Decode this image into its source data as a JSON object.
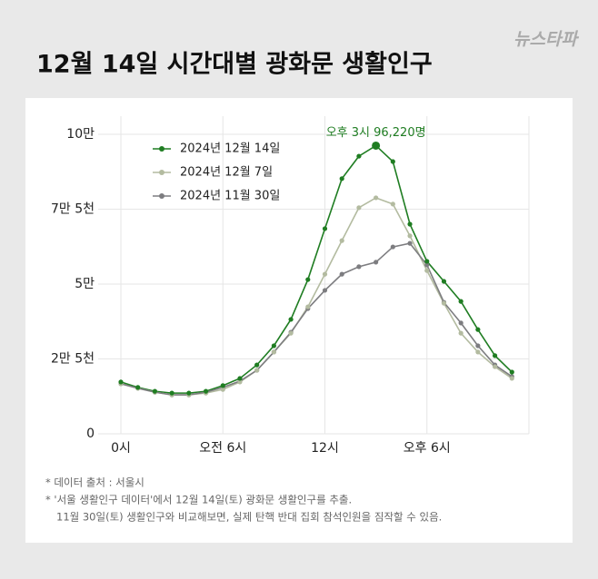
{
  "chart_data": {
    "type": "line",
    "title": "12월 14일 시간대별 광화문 생활인구",
    "logo": "뉴스타파",
    "annotation": "오후 3시  96,220명",
    "xlim": [
      0,
      24
    ],
    "xticks": [
      {
        "value": 0,
        "label": "0시"
      },
      {
        "value": 6,
        "label": "오전 6시"
      },
      {
        "value": 12,
        "label": "12시"
      },
      {
        "value": 18,
        "label": "오후 6시"
      }
    ],
    "ylim": [
      0,
      100000
    ],
    "yticks": [
      {
        "value": 0,
        "label": "0"
      },
      {
        "value": 25000,
        "label": "2만 5천"
      },
      {
        "value": 50000,
        "label": "5만"
      },
      {
        "value": 75000,
        "label": "7만 5천"
      },
      {
        "value": 100000,
        "label": "10만"
      }
    ],
    "grid": true,
    "legend": "upper left",
    "x": [
      0,
      1,
      2,
      3,
      4,
      5,
      6,
      7,
      8,
      9,
      10,
      11,
      12,
      13,
      14,
      15,
      16,
      17,
      18,
      19,
      20,
      21,
      22,
      23
    ],
    "series": [
      {
        "name": "2024년 12월 14일",
        "color": "#1f7d22",
        "values": [
          17300,
          15500,
          14200,
          13600,
          13600,
          14200,
          16100,
          18500,
          23000,
          29400,
          38200,
          51500,
          68500,
          85200,
          92700,
          96220,
          90900,
          70000,
          57600,
          50900,
          44200,
          34800,
          26100,
          20600
        ]
      },
      {
        "name": "2024년 12월 7일",
        "color": "#b3bba0",
        "values": [
          16700,
          15200,
          13900,
          13000,
          13000,
          13600,
          14800,
          17300,
          21200,
          27300,
          33600,
          42400,
          53300,
          64500,
          75500,
          78800,
          76700,
          66100,
          54500,
          43600,
          33600,
          27300,
          22400,
          18500
        ]
      },
      {
        "name": "2024년 11월 30일",
        "color": "#7d7d80",
        "values": [
          16700,
          15200,
          13900,
          13000,
          13000,
          13900,
          15500,
          17600,
          21200,
          27300,
          33900,
          41800,
          47900,
          53300,
          55800,
          57300,
          62400,
          63600,
          56400,
          43900,
          37000,
          29400,
          23000,
          19100
        ]
      }
    ],
    "notes": [
      "* 데이터 출처 : 서울시",
      "* '서울 생활인구 데이터'에서 12월 14일(토) 광화문 생활인구를 추출.",
      "11월 30일(토) 생활인구와 비교해보면, 실제 탄핵 반대 집회 참석인원을 짐작할 수 있음."
    ]
  }
}
